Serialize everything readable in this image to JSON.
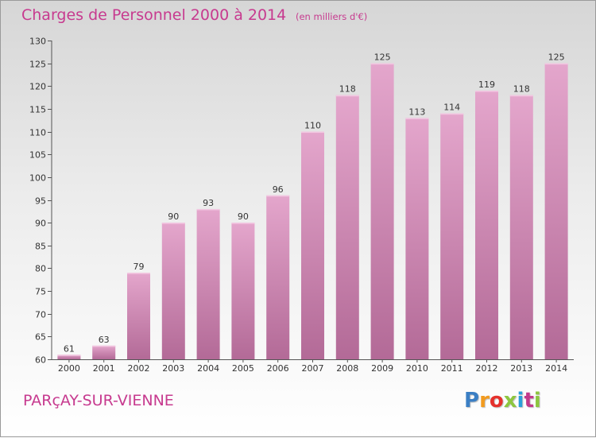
{
  "header": {
    "title": "Charges de Personnel 2000 à 2014",
    "subtitle": "(en milliers d'€)"
  },
  "footer": {
    "location": "PARçAY-SUR-VIENNE",
    "logo_text": "Proxiti",
    "logo_colors": [
      "#3b7fc4",
      "#f29b1f",
      "#e5312c",
      "#8dc63f",
      "#2c9fd9",
      "#c23a8b",
      "#8dc63f"
    ]
  },
  "colors": {
    "title": "#c73a8f",
    "bar_top": "#e4a6cc",
    "bar_bottom": "#b36a97",
    "axis": "#555555"
  },
  "chart_data": {
    "type": "bar",
    "categories": [
      "2000",
      "2001",
      "2002",
      "2003",
      "2004",
      "2005",
      "2006",
      "2007",
      "2008",
      "2009",
      "2010",
      "2011",
      "2012",
      "2013",
      "2014"
    ],
    "values": [
      61,
      63,
      79,
      90,
      93,
      90,
      96,
      110,
      118,
      125,
      113,
      114,
      119,
      118,
      125
    ],
    "title": "Charges de Personnel 2000 à 2014",
    "subtitle": "(en milliers d'€)",
    "ylim": [
      60,
      130
    ],
    "yticks": [
      60,
      65,
      70,
      75,
      80,
      85,
      90,
      95,
      100,
      105,
      110,
      115,
      120,
      125,
      130
    ],
    "grid": false,
    "data_labels": true
  }
}
